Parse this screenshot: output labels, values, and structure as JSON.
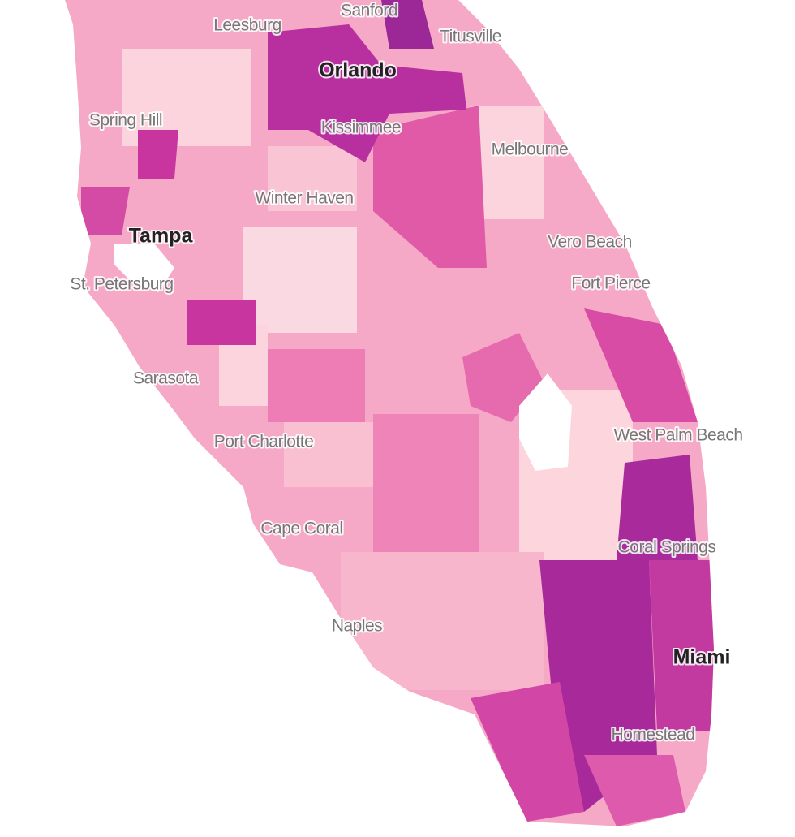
{
  "map": {
    "major_cities": [
      "Orlando",
      "Tampa",
      "Miami"
    ],
    "cities": [
      "Leesburg",
      "Sanford",
      "Titusville",
      "Spring Hill",
      "Kissimmee",
      "Melbourne",
      "Winter Haven",
      "Vero Beach",
      "St. Petersburg",
      "Fort Pierce",
      "Sarasota",
      "West Palm Beach",
      "Port Charlotte",
      "Cape Coral",
      "Coral Springs",
      "Naples",
      "Homestead"
    ]
  }
}
